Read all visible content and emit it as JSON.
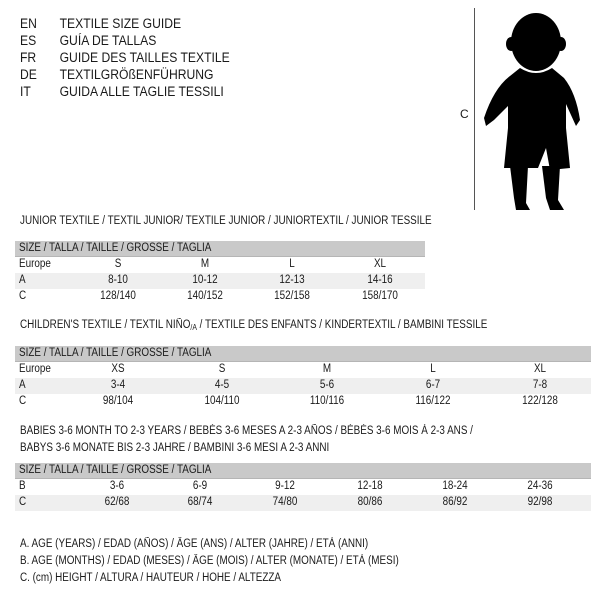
{
  "header_lines": [
    {
      "code": "EN",
      "text": "TEXTILE SIZE GUIDE"
    },
    {
      "code": "ES",
      "text": "GUÍA DE TALLAS"
    },
    {
      "code": "FR",
      "text": "GUIDE DES TAILLES TEXTILE"
    },
    {
      "code": "DE",
      "text": "TEXTILGRÖßENFÜHRUNG"
    },
    {
      "code": "IT",
      "text": "GUIDA ALLE TAGLIE TESSILI"
    }
  ],
  "figure": {
    "measure_label": "C",
    "icon": "child-silhouette"
  },
  "junior": {
    "title": "JUNIOR TEXTILE / TEXTIL JUNIOR/ TEXTILE JUNIOR / JUNIORTEXTIL / JUNIOR TESSILE",
    "header": "SIZE / TALLA / TAILLE / GRÖSSE / TAGLIA",
    "rows": [
      {
        "label": "Europe",
        "cells": [
          "S",
          "M",
          "L",
          "XL"
        ]
      },
      {
        "label": "A",
        "cells": [
          "8-10",
          "10-12",
          "12-13",
          "14-16"
        ]
      },
      {
        "label": "C",
        "cells": [
          "128/140",
          "140/152",
          "152/158",
          "158/170"
        ]
      }
    ]
  },
  "children": {
    "title_pre": "CHILDREN'S TEXTILE / TEXTIL NIÑO",
    "title_sub": "/A",
    "title_post": " / TEXTILE DES ENFANTS / KINDERTEXTIL / BAMBINI TESSILE",
    "header": "SIZE / TALLA / TAILLE / GRÖSSE / TAGLIA",
    "rows": [
      {
        "label": "Europe",
        "cells": [
          "XS",
          "S",
          "M",
          "L",
          "XL"
        ]
      },
      {
        "label": "A",
        "cells": [
          "3-4",
          "4-5",
          "5-6",
          "6-7",
          "7-8"
        ]
      },
      {
        "label": "C",
        "cells": [
          "98/104",
          "104/110",
          "110/116",
          "116/122",
          "122/128"
        ]
      }
    ]
  },
  "babies": {
    "title_line1": "BABIES 3-6 MONTH TO 2-3 YEARS / BEBÉS 3-6 MESES A 2-3 AÑOS / BÉBÉS 3-6 MOIS À 2-3 ANS /",
    "title_line2": "BABYS 3-6 MONATE BIS 2-3 JAHRE / BAMBINI 3-6 MESI A 2-3 ANNI",
    "header": "SIZE / TALLA / TAILLE / GRÖSSE / TAGLIA",
    "rows": [
      {
        "label": "B",
        "cells": [
          "3-6",
          "6-9",
          "9-12",
          "12-18",
          "18-24",
          "24-36"
        ]
      },
      {
        "label": "C",
        "cells": [
          "62/68",
          "68/74",
          "74/80",
          "80/86",
          "86/92",
          "92/98"
        ]
      }
    ]
  },
  "legend": [
    "A. AGE (YEARS) / EDAD (AÑOS) / ÂGE (ANS) / ALTER (JAHRE) / ETÀ (ANNI)",
    "B. AGE (MONTHS) / EDAD (MESES) / ÂGE (MOIS) / ALTER (MONATE) / ETÀ (MESI)",
    "C. (cm) HEIGHT / ALTURA / HAUTEUR / HÖHE / ALTEZZA"
  ],
  "colors": {
    "header_bg": "#c9c9c9",
    "shade_bg": "#efefef",
    "text": "#1a1a1a"
  }
}
